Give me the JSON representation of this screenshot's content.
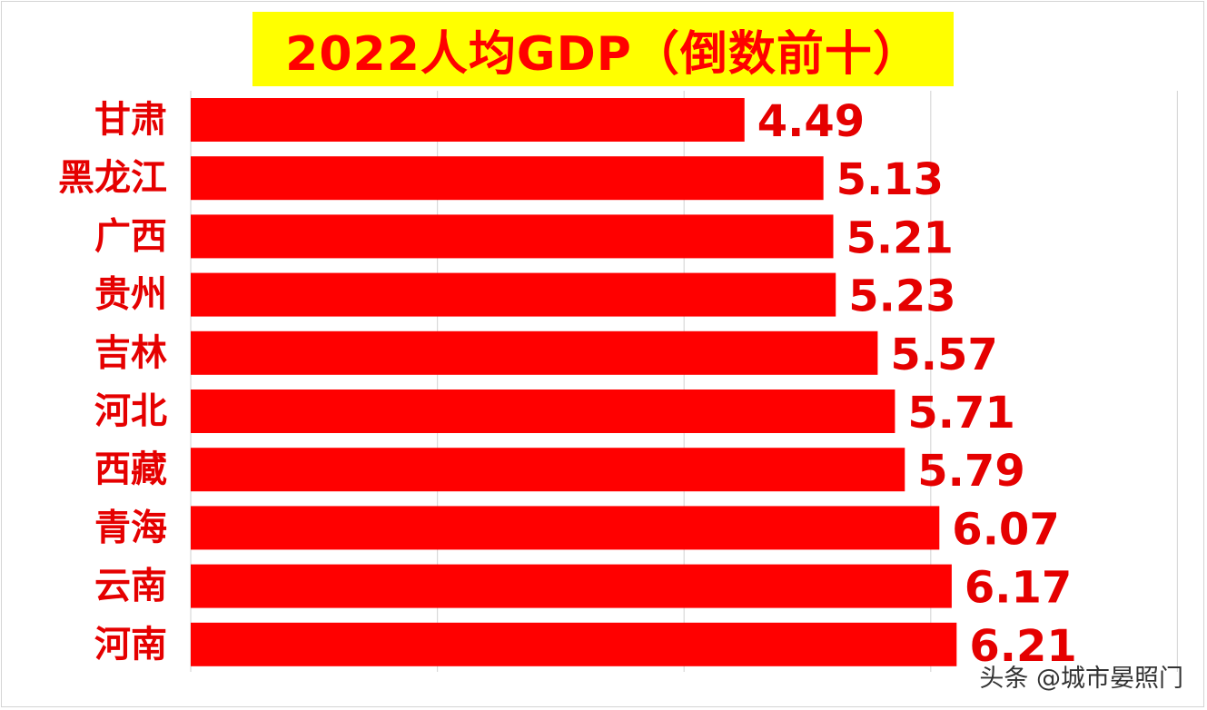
{
  "chart_data": {
    "type": "bar",
    "orientation": "horizontal",
    "title": "2022人均GDP（倒数前十）",
    "categories": [
      "甘肃",
      "黑龙江",
      "广西",
      "贵州",
      "吉林",
      "河北",
      "西藏",
      "青海",
      "云南",
      "河南"
    ],
    "values": [
      4.49,
      5.13,
      5.21,
      5.23,
      5.57,
      5.71,
      5.79,
      6.07,
      6.17,
      6.21
    ],
    "value_labels": [
      "4.49",
      "5.13",
      "5.21",
      "5.23",
      "5.57",
      "5.71",
      "5.79",
      "6.07",
      "6.17",
      "6.21"
    ],
    "xlim": [
      0,
      8
    ],
    "grid": true,
    "bar_color": "#ff0000",
    "label_color": "#e50000",
    "title_background": "#ffff00"
  },
  "watermark": {
    "text": "头条 @城市晏照门"
  }
}
